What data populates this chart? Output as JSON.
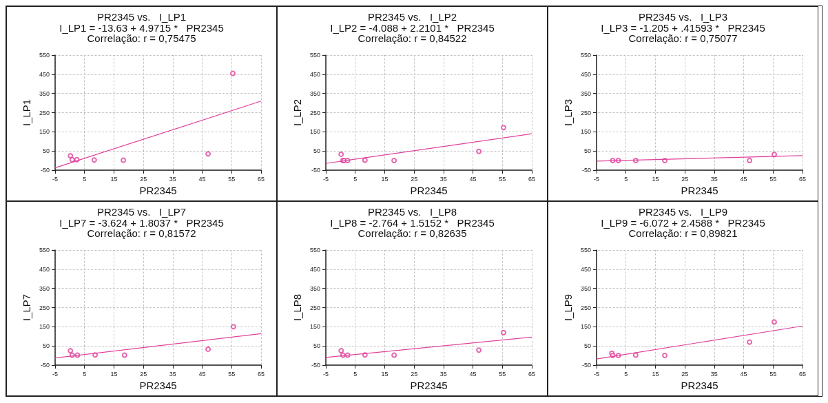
{
  "chart_data": [
    {
      "type": "scatter",
      "title": "PR2345 vs.   I_LP1",
      "subtitle": "I_LP1 = -13.63 + 4.9715 *   PR2345",
      "annotations": [
        "Correlação: r = 0,75475"
      ],
      "xlabel": "PR2345",
      "ylabel": "I_LP1",
      "xlim": [
        -5,
        65
      ],
      "xticks": [
        -5,
        5,
        15,
        25,
        35,
        45,
        55,
        65
      ],
      "ylim": [
        -50,
        550
      ],
      "yticks": [
        -50,
        50,
        150,
        250,
        350,
        450,
        550
      ],
      "grid": true,
      "series": [
        {
          "marker": "circle",
          "color": "#e0409a",
          "x": [
            0.2,
            0.8,
            2.4,
            8.3,
            18.2,
            47,
            55.4
          ],
          "values": [
            25,
            5,
            5,
            3,
            2,
            35,
            455
          ]
        },
        {
          "type": "line",
          "marker": "none",
          "color": "#e0409a",
          "x": [
            -5,
            65
          ],
          "values": [
            -38,
            310
          ]
        }
      ]
    },
    {
      "type": "scatter",
      "title": "PR2345 vs.   I_LP2",
      "subtitle": "I_LP2 = -4.088 + 2.2101 *   PR2345",
      "annotations": [
        "Correlação: r = 0,84522"
      ],
      "xlabel": "PR2345",
      "ylabel": "I_LP2",
      "xlim": [
        -5,
        65
      ],
      "xticks": [
        -5,
        5,
        15,
        25,
        35,
        45,
        55,
        65
      ],
      "ylim": [
        -50,
        550
      ],
      "yticks": [
        -50,
        50,
        150,
        250,
        350,
        450,
        550
      ],
      "grid": true,
      "series": [
        {
          "marker": "circle",
          "color": "#e0409a",
          "x": [
            0.2,
            0.8,
            1.2,
            2.4,
            8.3,
            18.2,
            47,
            55.4
          ],
          "values": [
            33,
            0,
            0,
            0,
            2,
            0,
            48,
            172
          ]
        },
        {
          "type": "line",
          "marker": "none",
          "color": "#e0409a",
          "x": [
            -5,
            65
          ],
          "values": [
            -15,
            140
          ]
        }
      ]
    },
    {
      "type": "scatter",
      "title": "PR2345 vs.   I_LP3",
      "subtitle": "I_LP3 = -1.205 + .41593 *   PR2345",
      "annotations": [
        "Correlação: r = 0,75077"
      ],
      "xlabel": "PR2345",
      "ylabel": "I_LP3",
      "xlim": [
        -5,
        65
      ],
      "xticks": [
        -5,
        5,
        15,
        25,
        35,
        45,
        55,
        65
      ],
      "ylim": [
        -50,
        550
      ],
      "yticks": [
        -50,
        50,
        150,
        250,
        350,
        450,
        550
      ],
      "grid": true,
      "series": [
        {
          "marker": "circle",
          "color": "#e0409a",
          "x": [
            0.5,
            2.4,
            8.3,
            18.2,
            47,
            55.4
          ],
          "values": [
            0,
            0,
            0,
            0,
            0,
            32
          ]
        },
        {
          "type": "line",
          "marker": "none",
          "color": "#e0409a",
          "x": [
            -5,
            65
          ],
          "values": [
            -3,
            26
          ]
        }
      ]
    },
    {
      "type": "scatter",
      "title": "PR2345 vs.   I_LP7",
      "subtitle": "I_LP7 = -3.624 + 1.8037 *   PR2345",
      "annotations": [
        "Correlação: r = 0,81572"
      ],
      "xlabel": "PR2345",
      "ylabel": "I_LP7",
      "xlim": [
        -5,
        65
      ],
      "xticks": [
        -5,
        5,
        15,
        25,
        35,
        45,
        55,
        65
      ],
      "ylim": [
        -50,
        550
      ],
      "yticks": [
        -50,
        50,
        150,
        250,
        350,
        450,
        550
      ],
      "grid": true,
      "series": [
        {
          "marker": "circle",
          "color": "#e0409a",
          "x": [
            0.2,
            0.8,
            2.6,
            8.6,
            18.6,
            47,
            55.6
          ],
          "values": [
            25,
            2,
            2,
            3,
            2,
            33,
            150
          ]
        },
        {
          "type": "line",
          "marker": "none",
          "color": "#e0409a",
          "x": [
            -5,
            65
          ],
          "values": [
            -13,
            114
          ]
        }
      ]
    },
    {
      "type": "scatter",
      "title": "PR2345 vs.   I_LP8",
      "subtitle": "I_LP8 = -2.764 + 1.5152 *   PR2345",
      "annotations": [
        "Correlação: r = 0,82635"
      ],
      "xlabel": "PR2345",
      "ylabel": "I_LP8",
      "xlim": [
        -5,
        65
      ],
      "xticks": [
        -5,
        5,
        15,
        25,
        35,
        45,
        55,
        65
      ],
      "ylim": [
        -50,
        550
      ],
      "yticks": [
        -50,
        50,
        150,
        250,
        350,
        450,
        550
      ],
      "grid": true,
      "series": [
        {
          "marker": "circle",
          "color": "#e0409a",
          "x": [
            0.2,
            0.8,
            2.4,
            8.3,
            18.2,
            47,
            55.4
          ],
          "values": [
            25,
            2,
            2,
            3,
            2,
            28,
            120
          ]
        },
        {
          "type": "line",
          "marker": "none",
          "color": "#e0409a",
          "x": [
            -5,
            65
          ],
          "values": [
            -10,
            96
          ]
        }
      ]
    },
    {
      "type": "scatter",
      "title": "PR2345 vs.   I_LP9",
      "subtitle": "I_LP9 = -6.072 + 2.4588 *   PR2345",
      "annotations": [
        "Correlação: r = 0,89821"
      ],
      "xlabel": "PR2345",
      "ylabel": "I_LP9",
      "xlim": [
        -5,
        65
      ],
      "xticks": [
        -5,
        5,
        15,
        25,
        35,
        45,
        55,
        65
      ],
      "ylim": [
        -50,
        550
      ],
      "yticks": [
        -50,
        50,
        150,
        250,
        350,
        450,
        550
      ],
      "grid": true,
      "series": [
        {
          "marker": "circle",
          "color": "#e0409a",
          "x": [
            0.2,
            0.5,
            2.4,
            8.3,
            18.2,
            47,
            55.4
          ],
          "values": [
            12,
            0,
            0,
            2,
            0,
            70,
            175
          ]
        },
        {
          "type": "line",
          "marker": "none",
          "color": "#e0409a",
          "x": [
            -5,
            65
          ],
          "values": [
            -18,
            154
          ]
        }
      ]
    }
  ]
}
